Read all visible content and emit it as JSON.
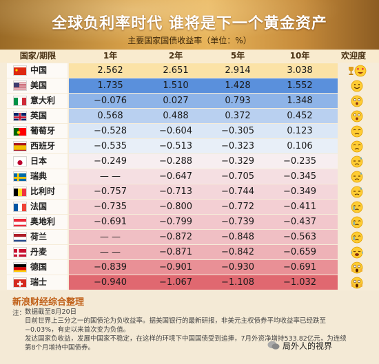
{
  "title": "全球负利率时代 谁将是下一个黄金资产",
  "subtitle": "主要国家国债收益率（单位：%）",
  "columns": [
    "国家/期限",
    "1年",
    "2年",
    "5年",
    "10年",
    "欢迎度"
  ],
  "colors": {
    "blue": "#5b8fd8",
    "lightblue": "#dbe8f7",
    "yellow": "#f8e3a8",
    "pink": "#f6cfd2",
    "red": "#e06a70"
  },
  "chart_data": {
    "type": "table",
    "title": "全球负利率时代 谁将是下一个黄金资产",
    "subtitle": "主要国家国债收益率（单位：%）",
    "columns": [
      "1年",
      "2年",
      "5年",
      "10年"
    ],
    "rows": [
      {
        "country": "中国",
        "flag": "cn",
        "values": [
          "2.562",
          "2.651",
          "2.914",
          "3.038"
        ],
        "emoji": "trophy-heart-eyes-icon",
        "bg": "#fbe2a6"
      },
      {
        "country": "美国",
        "flag": "us",
        "values": [
          "1.735",
          "1.510",
          "1.428",
          "1.552"
        ],
        "emoji": "smile-icon",
        "bg": "#5a90dc"
      },
      {
        "country": "意大利",
        "flag": "it",
        "values": [
          "−0.076",
          "0.027",
          "0.793",
          "1.348"
        ],
        "emoji": "surprised-icon",
        "bg": "#8eb4e8"
      },
      {
        "country": "英国",
        "flag": "gb",
        "values": [
          "0.568",
          "0.488",
          "0.372",
          "0.452"
        ],
        "emoji": "surprised-icon",
        "bg": "#b9d0f0"
      },
      {
        "country": "葡萄牙",
        "flag": "pt",
        "values": [
          "−0.528",
          "−0.604",
          "−0.305",
          "0.123"
        ],
        "emoji": "sad-icon",
        "bg": "#dbe7f6"
      },
      {
        "country": "西班牙",
        "flag": "es",
        "values": [
          "−0.535",
          "−0.513",
          "−0.323",
          "0.106"
        ],
        "emoji": "sad-icon",
        "bg": "#e8eff8"
      },
      {
        "country": "日本",
        "flag": "jp",
        "values": [
          "−0.249",
          "−0.288",
          "−0.329",
          "−0.235"
        ],
        "emoji": "sweat-icon",
        "bg": "#f7eef0"
      },
      {
        "country": "瑞典",
        "flag": "se",
        "values": [
          "— —",
          "−0.647",
          "−0.705",
          "−0.345"
        ],
        "emoji": "sweat-icon",
        "bg": "#f5dfe2"
      },
      {
        "country": "比利时",
        "flag": "be",
        "values": [
          "−0.757",
          "−0.713",
          "−0.744",
          "−0.349"
        ],
        "emoji": "sweat-icon",
        "bg": "#f4d6da"
      },
      {
        "country": "法国",
        "flag": "fr",
        "values": [
          "−0.735",
          "−0.800",
          "−0.772",
          "−0.411"
        ],
        "emoji": "cry-icon",
        "bg": "#f3cfd3"
      },
      {
        "country": "奥地利",
        "flag": "at",
        "values": [
          "−0.691",
          "−0.799",
          "−0.739",
          "−0.437"
        ],
        "emoji": "cry-icon",
        "bg": "#f2c7cc"
      },
      {
        "country": "荷兰",
        "flag": "nl",
        "values": [
          "— —",
          "−0.872",
          "−0.848",
          "−0.563"
        ],
        "emoji": "cry-icon",
        "bg": "#f0bfc4"
      },
      {
        "country": "丹麦",
        "flag": "dk",
        "values": [
          "— —",
          "−0.871",
          "−0.842",
          "−0.659"
        ],
        "emoji": "tears-icon",
        "bg": "#eeb2b7"
      },
      {
        "country": "德国",
        "flag": "de",
        "values": [
          "−0.839",
          "−0.901",
          "−0.930",
          "−0.691"
        ],
        "emoji": "scream-icon",
        "bg": "#e99096"
      },
      {
        "country": "瑞士",
        "flag": "ch",
        "values": [
          "−0.940",
          "−1.067",
          "−1.108",
          "−1.032"
        ],
        "emoji": "scream-icon",
        "bg": "#e06870"
      }
    ]
  },
  "footer": {
    "source": "新浪财经综合整理",
    "note_label": "注：",
    "notes": [
      "数据截至8月20日",
      "目前世界上三分之一的国债沦为负收益率。据美国银行的最新研报，非美元主权债券平均收益率已经跌至−0.03%，有史以来首次变为负值。",
      "发达国家负收益，发展中国家不稳定，在这样的环境下中国国债受到追捧，7月外资净增持533.82亿元，为连续第8个月增持中国债券。"
    ],
    "brand": "局外人的视界"
  }
}
